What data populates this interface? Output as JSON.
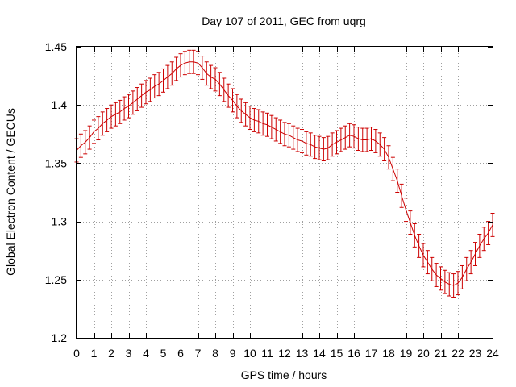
{
  "chart_data": {
    "type": "line",
    "title": "Day 107 of 2011, GEC from uqrg",
    "xlabel": "GPS time / hours",
    "ylabel": "Global Electron Content / GECUs",
    "xlim": [
      0,
      24
    ],
    "ylim": [
      1.2,
      1.45
    ],
    "grid": true,
    "x_ticks": [
      0,
      1,
      2,
      3,
      4,
      5,
      6,
      7,
      8,
      9,
      10,
      11,
      12,
      13,
      14,
      15,
      16,
      17,
      18,
      19,
      20,
      21,
      22,
      23,
      24
    ],
    "x_tick_labels": [
      "0",
      "1",
      "2",
      "3",
      "4",
      "5",
      "6",
      "7",
      "8",
      "9",
      "10",
      "11",
      "12",
      "13",
      "14",
      "15",
      "16",
      "17",
      "18",
      "19",
      "20",
      "21",
      "22",
      "23",
      "24"
    ],
    "y_ticks": [
      1.2,
      1.25,
      1.3,
      1.35,
      1.4,
      1.45
    ],
    "y_tick_labels": [
      "1.2",
      "1.25",
      "1.3",
      "1.35",
      "1.4",
      "1.45"
    ],
    "error": 0.01,
    "series": [
      {
        "name": "GEC",
        "color": "#cc0000",
        "x": [
          0,
          0.25,
          0.5,
          0.75,
          1,
          1.25,
          1.5,
          1.75,
          2,
          2.25,
          2.5,
          2.75,
          3,
          3.25,
          3.5,
          3.75,
          4,
          4.25,
          4.5,
          4.75,
          5,
          5.25,
          5.5,
          5.75,
          6,
          6.25,
          6.5,
          6.75,
          7,
          7.25,
          7.5,
          7.75,
          8,
          8.25,
          8.5,
          8.75,
          9,
          9.25,
          9.5,
          9.75,
          10,
          10.25,
          10.5,
          10.75,
          11,
          11.25,
          11.5,
          11.75,
          12,
          12.25,
          12.5,
          12.75,
          13,
          13.25,
          13.5,
          13.75,
          14,
          14.25,
          14.5,
          14.75,
          15,
          15.25,
          15.5,
          15.75,
          16,
          16.25,
          16.5,
          16.75,
          17,
          17.25,
          17.5,
          17.75,
          18,
          18.25,
          18.5,
          18.75,
          19,
          19.25,
          19.5,
          19.75,
          20,
          20.25,
          20.5,
          20.75,
          21,
          21.25,
          21.5,
          21.75,
          22,
          22.25,
          22.5,
          22.75,
          23,
          23.25,
          23.5,
          23.75,
          24
        ],
        "values": [
          1.361,
          1.365,
          1.368,
          1.372,
          1.377,
          1.38,
          1.384,
          1.387,
          1.39,
          1.392,
          1.394,
          1.397,
          1.399,
          1.402,
          1.405,
          1.408,
          1.411,
          1.413,
          1.416,
          1.418,
          1.421,
          1.424,
          1.427,
          1.431,
          1.434,
          1.436,
          1.437,
          1.437,
          1.436,
          1.432,
          1.427,
          1.424,
          1.422,
          1.418,
          1.413,
          1.408,
          1.404,
          1.399,
          1.395,
          1.392,
          1.389,
          1.387,
          1.386,
          1.384,
          1.383,
          1.381,
          1.379,
          1.377,
          1.375,
          1.374,
          1.372,
          1.37,
          1.369,
          1.367,
          1.366,
          1.364,
          1.363,
          1.362,
          1.363,
          1.366,
          1.368,
          1.37,
          1.372,
          1.374,
          1.373,
          1.371,
          1.37,
          1.37,
          1.371,
          1.369,
          1.366,
          1.362,
          1.355,
          1.345,
          1.335,
          1.322,
          1.31,
          1.299,
          1.288,
          1.279,
          1.271,
          1.265,
          1.259,
          1.254,
          1.251,
          1.248,
          1.246,
          1.245,
          1.247,
          1.252,
          1.259,
          1.265,
          1.272,
          1.279,
          1.285,
          1.29,
          1.297
        ]
      }
    ]
  }
}
